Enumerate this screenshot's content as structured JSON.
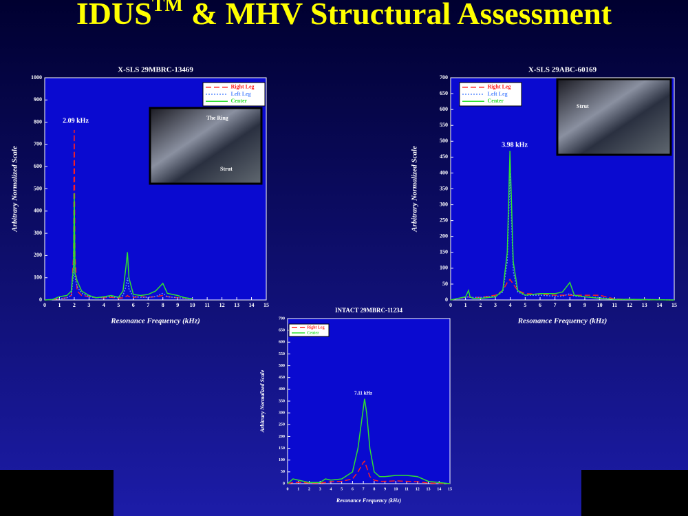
{
  "slide_title": {
    "main": "IDUS",
    "sup": "TM",
    "rest": "& MHV Structural Assessment"
  },
  "chart_data": [
    {
      "type": "line",
      "title": "X-SLS  29MBRC-13469",
      "x_label": "Resonance Frequency (kHz)",
      "y_label": "Arbitrary Normalized Scale",
      "annotation": "2.09 kHz",
      "inset_labels": [
        "The Ring",
        "Strut"
      ],
      "xlim": [
        0,
        15
      ],
      "xticks": [
        0,
        1,
        2,
        3,
        4,
        5,
        6,
        7,
        8,
        9,
        10,
        11,
        12,
        13,
        14,
        15
      ],
      "ylim": [
        0,
        1000
      ],
      "yticks": [
        0,
        100,
        200,
        300,
        400,
        500,
        600,
        700,
        800,
        900,
        1000
      ],
      "x": [
        0,
        0.5,
        1,
        1.5,
        1.8,
        1.95,
        2.0,
        2.05,
        2.2,
        2.5,
        3,
        3.5,
        4,
        4.5,
        5,
        5.3,
        5.5,
        5.6,
        5.7,
        6,
        6.5,
        7,
        7.5,
        8,
        8.3,
        9,
        9.5,
        10
      ],
      "series": [
        {
          "name": "Right Leg",
          "color": "#ff2020",
          "style": "dashed",
          "values": [
            0,
            2,
            5,
            10,
            20,
            200,
            765,
            200,
            40,
            20,
            15,
            10,
            10,
            12,
            8,
            10,
            15,
            20,
            15,
            12,
            15,
            12,
            15,
            20,
            15,
            10,
            8,
            5
          ]
        },
        {
          "name": "Left Leg",
          "color": "#5a8cff",
          "style": "dotted",
          "values": [
            0,
            2,
            5,
            10,
            20,
            120,
            430,
            100,
            60,
            30,
            15,
            10,
            12,
            15,
            10,
            20,
            60,
            100,
            50,
            15,
            12,
            12,
            15,
            30,
            15,
            10,
            8,
            5
          ]
        },
        {
          "name": "Center",
          "color": "#30e030",
          "style": "solid",
          "values": [
            0,
            2,
            15,
            20,
            40,
            150,
            480,
            120,
            85,
            40,
            20,
            10,
            15,
            20,
            12,
            40,
            150,
            215,
            100,
            25,
            20,
            25,
            40,
            75,
            30,
            20,
            10,
            5
          ]
        }
      ]
    },
    {
      "type": "line",
      "title": "X-SLS  29ABC-60169",
      "x_label": "Resonance Frequency (kHz)",
      "y_label": "Arbitrary Normalized Scale",
      "annotation": "3.98 kHz",
      "inset_labels": [
        "Strut"
      ],
      "xlim": [
        0,
        15
      ],
      "xticks": [
        0,
        1,
        2,
        3,
        4,
        5,
        6,
        7,
        8,
        9,
        10,
        11,
        12,
        13,
        14,
        15
      ],
      "ylim": [
        0,
        700
      ],
      "yticks": [
        0,
        50,
        100,
        150,
        200,
        250,
        300,
        350,
        400,
        450,
        500,
        550,
        600,
        650,
        700
      ],
      "x": [
        0,
        0.5,
        1,
        1.2,
        1.3,
        1.5,
        2,
        3,
        3.5,
        3.8,
        3.98,
        4.2,
        4.5,
        5,
        6,
        7,
        7.5,
        8,
        8.3,
        9,
        10,
        11,
        12,
        15
      ],
      "series": [
        {
          "name": "Right Leg",
          "color": "#ff2020",
          "style": "dashed",
          "values": [
            0,
            5,
            8,
            10,
            8,
            8,
            8,
            15,
            30,
            55,
            65,
            50,
            30,
            20,
            18,
            15,
            15,
            15,
            15,
            15,
            15,
            3,
            2,
            0
          ]
        },
        {
          "name": "Left Leg",
          "color": "#5a8cff",
          "style": "dotted",
          "values": [
            0,
            5,
            8,
            10,
            8,
            8,
            8,
            12,
            25,
            120,
            400,
            90,
            25,
            15,
            15,
            12,
            12,
            20,
            12,
            10,
            8,
            2,
            2,
            0
          ]
        },
        {
          "name": "Center",
          "color": "#30e030",
          "style": "solid",
          "values": [
            0,
            5,
            10,
            30,
            10,
            5,
            5,
            10,
            30,
            150,
            470,
            120,
            30,
            15,
            20,
            20,
            25,
            55,
            15,
            10,
            5,
            2,
            2,
            0
          ]
        }
      ]
    },
    {
      "type": "line",
      "title": "INTACT  29MBRC-11234",
      "x_label": "Resonance Frequency (kHz)",
      "y_label": "Arbitrary Normalized Scale",
      "annotation": "7.11 kHz",
      "xlim": [
        0,
        15
      ],
      "xticks": [
        0,
        1,
        2,
        3,
        4,
        5,
        6,
        7,
        8,
        9,
        10,
        11,
        12,
        13,
        14,
        15
      ],
      "ylim": [
        0,
        700
      ],
      "yticks": [
        0,
        50,
        100,
        150,
        200,
        250,
        300,
        350,
        400,
        450,
        500,
        550,
        600,
        650,
        700
      ],
      "x": [
        0,
        0.5,
        1,
        1.5,
        2,
        3,
        3.5,
        4,
        5,
        6,
        6.5,
        7,
        7.11,
        7.3,
        7.6,
        8,
        8.5,
        9,
        10,
        11,
        12,
        13,
        15
      ],
      "series": [
        {
          "name": "Right Leg",
          "color": "#ff2020",
          "style": "dashed",
          "values": [
            0,
            5,
            5,
            5,
            3,
            3,
            5,
            8,
            10,
            20,
            50,
            90,
            95,
            70,
            30,
            15,
            10,
            10,
            12,
            10,
            8,
            3,
            0
          ]
        },
        {
          "name": "Center",
          "color": "#30e030",
          "style": "solid",
          "values": [
            0,
            20,
            15,
            10,
            5,
            5,
            20,
            15,
            20,
            50,
            150,
            320,
            360,
            300,
            150,
            50,
            30,
            30,
            35,
            35,
            30,
            10,
            0
          ]
        }
      ]
    }
  ]
}
